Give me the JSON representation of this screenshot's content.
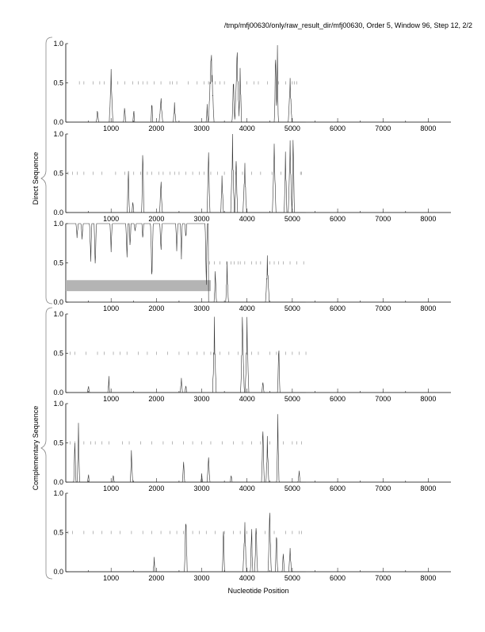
{
  "chart_data": {
    "type": "line",
    "title": "/tmp/mfj00630/only/raw_result_dir/mfj00630, Order 5, Window 96, Step 12, 2/2",
    "xlabel": "Nucleotide Position",
    "xlim": [
      0,
      8500
    ],
    "ylim": [
      0,
      1
    ],
    "xticks": [
      1000,
      2000,
      3000,
      4000,
      5000,
      6000,
      7000,
      8000
    ],
    "yticks": [
      "0.0",
      "0.5",
      "1.0"
    ],
    "groups": [
      {
        "label": "Direct Sequence",
        "panels": [
          0,
          1,
          2
        ]
      },
      {
        "label": "Complementary Sequence",
        "panels": [
          3,
          4,
          5
        ]
      }
    ],
    "highlight": {
      "panel": 2,
      "x": [
        0,
        3200
      ],
      "y": [
        0.14,
        0.28
      ],
      "color": "#b4b4b4"
    },
    "panels": [
      {
        "name": "direct-frame-1",
        "inverted_until": 0,
        "peaks": [
          [
            700,
            0.15,
            25
          ],
          [
            1000,
            0.65,
            40
          ],
          [
            1300,
            0.18,
            25
          ],
          [
            1500,
            0.15,
            20
          ],
          [
            1900,
            0.25,
            20
          ],
          [
            2100,
            0.3,
            40
          ],
          [
            2400,
            0.22,
            30
          ],
          [
            3120,
            0.2,
            20
          ],
          [
            3210,
            0.95,
            60
          ],
          [
            3700,
            0.55,
            30
          ],
          [
            3780,
            0.9,
            50
          ],
          [
            3850,
            0.65,
            30
          ],
          [
            4630,
            0.97,
            25
          ],
          [
            4670,
            0.97,
            20
          ],
          [
            4950,
            0.55,
            40
          ]
        ],
        "stops": [
          300,
          400,
          600,
          750,
          850,
          1000,
          1150,
          1300,
          1480,
          1600,
          1700,
          1800,
          1950,
          2100,
          2300,
          2350,
          2450,
          2700,
          2900,
          3050,
          3150,
          3300,
          3400,
          3500,
          3800,
          4000,
          4150,
          4250,
          4450,
          4700,
          4850,
          5000,
          5050,
          5100
        ]
      },
      {
        "name": "direct-frame-2",
        "inverted_until": 0,
        "peaks": [
          [
            1380,
            0.55,
            25
          ],
          [
            1480,
            0.15,
            20
          ],
          [
            1700,
            0.8,
            25
          ],
          [
            2100,
            0.4,
            30
          ],
          [
            3150,
            0.85,
            30
          ],
          [
            3450,
            0.45,
            30
          ],
          [
            3680,
            0.92,
            40
          ],
          [
            3760,
            0.75,
            30
          ],
          [
            3950,
            0.6,
            40
          ],
          [
            4600,
            0.88,
            40
          ],
          [
            4850,
            0.75,
            30
          ],
          [
            4950,
            0.9,
            40
          ],
          [
            5020,
            0.95,
            25
          ]
        ],
        "stops": [
          50,
          150,
          250,
          400,
          600,
          800,
          1100,
          1300,
          1500,
          1650,
          1800,
          1900,
          2050,
          2150,
          2300,
          2400,
          2500,
          2650,
          2800,
          2950,
          3050,
          3200,
          3350,
          3500,
          3750,
          3900,
          4100,
          4300,
          4550,
          4750,
          5180,
          5200
        ]
      },
      {
        "name": "direct-frame-3",
        "inverted_until": 3150,
        "peaks": [
          [
            250,
            0.18,
            25
          ],
          [
            360,
            0.2,
            25
          ],
          [
            550,
            0.5,
            25
          ],
          [
            650,
            0.6,
            25
          ],
          [
            1000,
            0.35,
            25
          ],
          [
            1350,
            0.45,
            25
          ],
          [
            1420,
            0.3,
            20
          ],
          [
            1530,
            0.1,
            25
          ],
          [
            1700,
            0.2,
            20
          ],
          [
            1900,
            0.7,
            30
          ],
          [
            2100,
            0.35,
            25
          ],
          [
            2450,
            0.35,
            25
          ],
          [
            2550,
            0.45,
            20
          ],
          [
            2650,
            0.2,
            20
          ],
          [
            3100,
            0.8,
            25
          ],
          [
            3300,
            0.4,
            25
          ],
          [
            3560,
            0.45,
            30
          ],
          [
            4450,
            0.55,
            40
          ]
        ],
        "stops": [
          3170,
          3280,
          3400,
          3550,
          3650,
          3720,
          3800,
          3850,
          3950,
          4100,
          4200,
          4300,
          4500,
          4600,
          4700,
          4800,
          4950,
          5100,
          5250
        ]
      },
      {
        "name": "complementary-frame-1",
        "inverted_until": 0,
        "peaks": [
          [
            500,
            0.08,
            25
          ],
          [
            950,
            0.2,
            20
          ],
          [
            2550,
            0.18,
            25
          ],
          [
            2650,
            0.1,
            20
          ],
          [
            3280,
            0.85,
            40
          ],
          [
            3900,
            0.95,
            40
          ],
          [
            4000,
            0.85,
            40
          ],
          [
            4350,
            0.15,
            25
          ],
          [
            4700,
            0.6,
            25
          ]
        ],
        "stops": [
          100,
          200,
          450,
          700,
          850,
          1050,
          1200,
          1350,
          1600,
          1800,
          2000,
          2250,
          2500,
          2700,
          2900,
          3050,
          3200,
          3400,
          3600,
          3800,
          4100,
          4250,
          4500,
          4650,
          4850,
          5000,
          5150,
          5300
        ]
      },
      {
        "name": "complementary-frame-2",
        "inverted_until": 0,
        "peaks": [
          [
            200,
            0.55,
            25
          ],
          [
            280,
            0.72,
            25
          ],
          [
            500,
            0.1,
            20
          ],
          [
            1050,
            0.1,
            20
          ],
          [
            1450,
            0.42,
            25
          ],
          [
            2600,
            0.28,
            25
          ],
          [
            3000,
            0.1,
            20
          ],
          [
            3150,
            0.35,
            30
          ],
          [
            3650,
            0.1,
            20
          ],
          [
            4350,
            0.75,
            30
          ],
          [
            4450,
            0.55,
            30
          ],
          [
            4680,
            0.82,
            25
          ],
          [
            5150,
            0.15,
            25
          ]
        ],
        "stops": [
          100,
          200,
          400,
          550,
          650,
          800,
          950,
          1250,
          1400,
          1650,
          1900,
          2150,
          2350,
          2600,
          2800,
          3000,
          3200,
          3450,
          3700,
          3900,
          4100,
          4300,
          4500,
          4800,
          5000,
          5100,
          5200
        ]
      },
      {
        "name": "complementary-frame-3",
        "inverted_until": 0,
        "peaks": [
          [
            1950,
            0.18,
            20
          ],
          [
            2650,
            0.75,
            30
          ],
          [
            3480,
            0.6,
            25
          ],
          [
            3950,
            0.6,
            40
          ],
          [
            4100,
            0.55,
            25
          ],
          [
            4200,
            0.65,
            30
          ],
          [
            4500,
            0.78,
            35
          ],
          [
            4650,
            0.55,
            25
          ],
          [
            4800,
            0.25,
            25
          ],
          [
            4950,
            0.3,
            30
          ]
        ],
        "stops": [
          50,
          150,
          400,
          600,
          800,
          1000,
          1200,
          1450,
          1700,
          1900,
          2100,
          2300,
          2450,
          2600,
          2800,
          2950,
          3100,
          3300,
          3500,
          3700,
          3850,
          4000,
          4200,
          4400,
          4600,
          4850,
          5000,
          5150,
          5200
        ]
      }
    ]
  }
}
